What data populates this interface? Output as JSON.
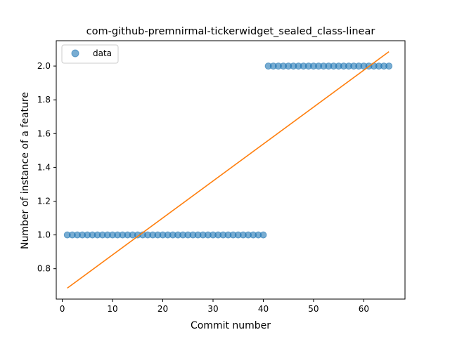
{
  "chart_data": {
    "type": "scatter",
    "title": "com-github-premnirmal-tickerwidget_sealed_class-linear",
    "xlabel": "Commit number",
    "ylabel": "Number of instance of a feature",
    "xlim": [
      -1.2,
      68.2
    ],
    "ylim": [
      0.62,
      2.15
    ],
    "xticks": [
      0,
      10,
      20,
      30,
      40,
      50,
      60
    ],
    "yticks": [
      0.8,
      1.0,
      1.2,
      1.4,
      1.6,
      1.8,
      2.0
    ],
    "xtick_labels": [
      "0",
      "10",
      "20",
      "30",
      "40",
      "50",
      "60"
    ],
    "ytick_labels": [
      "0.8",
      "1.0",
      "1.2",
      "1.4",
      "1.6",
      "1.8",
      "2.0"
    ],
    "grid": false,
    "legend_position": "upper-left",
    "series": [
      {
        "name": "data",
        "type": "scatter",
        "color": "#1f77b4",
        "x": [
          1,
          2,
          3,
          4,
          5,
          6,
          7,
          8,
          9,
          10,
          11,
          12,
          13,
          14,
          15,
          16,
          17,
          18,
          19,
          20,
          21,
          22,
          23,
          24,
          25,
          26,
          27,
          28,
          29,
          30,
          31,
          32,
          33,
          34,
          35,
          36,
          37,
          38,
          39,
          40,
          41,
          42,
          43,
          44,
          45,
          46,
          47,
          48,
          49,
          50,
          51,
          52,
          53,
          54,
          55,
          56,
          57,
          58,
          59,
          60,
          61,
          62,
          63,
          64,
          65
        ],
        "y": [
          1,
          1,
          1,
          1,
          1,
          1,
          1,
          1,
          1,
          1,
          1,
          1,
          1,
          1,
          1,
          1,
          1,
          1,
          1,
          1,
          1,
          1,
          1,
          1,
          1,
          1,
          1,
          1,
          1,
          1,
          1,
          1,
          1,
          1,
          1,
          1,
          1,
          1,
          1,
          1,
          2,
          2,
          2,
          2,
          2,
          2,
          2,
          2,
          2,
          2,
          2,
          2,
          2,
          2,
          2,
          2,
          2,
          2,
          2,
          2,
          2,
          2,
          2,
          2,
          2
        ]
      },
      {
        "type": "line",
        "color": "#ff7f0e",
        "x": [
          1,
          65
        ],
        "y": [
          0.685,
          2.085
        ]
      }
    ]
  }
}
